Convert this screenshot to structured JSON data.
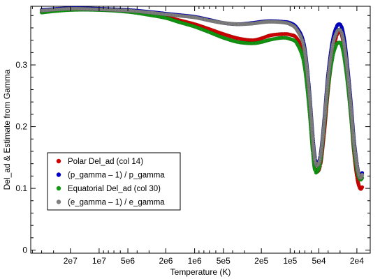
{
  "chart_data": {
    "type": "scatter",
    "xlabel": "Temperature (K)",
    "ylabel": "Del_ad & Estimate from Gamma",
    "x_scale": "log",
    "x_reversed": true,
    "xlim": [
      52000000,
      14500
    ],
    "ylim": [
      -0.005,
      0.395
    ],
    "x_ticks": [
      {
        "value": 20000000,
        "label": "2e7"
      },
      {
        "value": 10000000,
        "label": "1e7"
      },
      {
        "value": 5000000,
        "label": "5e6"
      },
      {
        "value": 2000000,
        "label": "2e6"
      },
      {
        "value": 1000000,
        "label": "1e6"
      },
      {
        "value": 500000,
        "label": "5e5"
      },
      {
        "value": 200000,
        "label": "2e5"
      },
      {
        "value": 100000,
        "label": "1e5"
      },
      {
        "value": 50000,
        "label": "5e4"
      },
      {
        "value": 20000,
        "label": "2e4"
      }
    ],
    "y_ticks": [
      {
        "value": 0,
        "label": "0"
      },
      {
        "value": 0.1,
        "label": "0.1"
      },
      {
        "value": 0.2,
        "label": "0.2"
      },
      {
        "value": 0.3,
        "label": "0.3"
      }
    ],
    "grid": false,
    "legend_position": "lower-left",
    "series": [
      {
        "name": "Polar Del_ad (col 14)",
        "color": "#d40000",
        "x": [
          40000000,
          20000000,
          10000000,
          5000000,
          3000000,
          2000000,
          1500000,
          1000000,
          700000,
          500000,
          350000,
          250000,
          200000,
          160000,
          120000,
          100000,
          85000,
          72000,
          64000,
          58000,
          55000,
          52000,
          48000,
          44000,
          40000,
          36000,
          33000,
          31000,
          29000,
          27000,
          25000,
          23000,
          21500,
          20000,
          19000,
          18200,
          17600
        ],
        "y": [
          0.386,
          0.39,
          0.39,
          0.387,
          0.383,
          0.378,
          0.373,
          0.366,
          0.358,
          0.35,
          0.343,
          0.34,
          0.343,
          0.348,
          0.35,
          0.349,
          0.343,
          0.315,
          0.25,
          0.17,
          0.135,
          0.127,
          0.14,
          0.19,
          0.26,
          0.318,
          0.345,
          0.353,
          0.35,
          0.325,
          0.28,
          0.215,
          0.16,
          0.12,
          0.104,
          0.099,
          0.102
        ]
      },
      {
        "name": "(p_gamma – 1) / p_gamma",
        "color": "#0000cc",
        "x": [
          40000000,
          20000000,
          10000000,
          5000000,
          3000000,
          2000000,
          1500000,
          1000000,
          700000,
          500000,
          350000,
          250000,
          200000,
          160000,
          120000,
          100000,
          85000,
          72000,
          64000,
          58000,
          55000,
          52000,
          48000,
          44000,
          40000,
          36000,
          33000,
          31000,
          29000,
          27000,
          25000,
          23000,
          21500,
          20000,
          19000,
          18200,
          17600
        ],
        "y": [
          0.389,
          0.392,
          0.391,
          0.389,
          0.386,
          0.383,
          0.381,
          0.378,
          0.373,
          0.368,
          0.366,
          0.368,
          0.37,
          0.371,
          0.37,
          0.368,
          0.36,
          0.335,
          0.27,
          0.185,
          0.15,
          0.14,
          0.155,
          0.21,
          0.285,
          0.338,
          0.36,
          0.366,
          0.362,
          0.34,
          0.295,
          0.235,
          0.18,
          0.14,
          0.122,
          0.118,
          0.125
        ]
      },
      {
        "name": "Equatorial Del_ad (col 30)",
        "color": "#119911",
        "x": [
          40000000,
          20000000,
          10000000,
          5000000,
          3000000,
          2000000,
          1500000,
          1000000,
          700000,
          500000,
          350000,
          250000,
          200000,
          160000,
          120000,
          100000,
          85000,
          72000,
          64000,
          58000,
          55000,
          52000,
          48000,
          44000,
          40000,
          36000,
          33000,
          31000,
          29000,
          27000,
          25000,
          23000,
          21500,
          20000,
          19000,
          18200,
          17600
        ],
        "y": [
          0.385,
          0.389,
          0.389,
          0.386,
          0.381,
          0.376,
          0.37,
          0.362,
          0.353,
          0.344,
          0.337,
          0.335,
          0.337,
          0.341,
          0.344,
          0.342,
          0.335,
          0.305,
          0.24,
          0.16,
          0.13,
          0.127,
          0.145,
          0.2,
          0.265,
          0.312,
          0.332,
          0.336,
          0.333,
          0.31,
          0.27,
          0.215,
          0.165,
          0.13,
          0.117,
          0.114,
          0.117
        ]
      },
      {
        "name": "(e_gamma – 1) / e_gamma",
        "color": "#808080",
        "x": [
          40000000,
          20000000,
          10000000,
          5000000,
          3000000,
          2000000,
          1500000,
          1000000,
          700000,
          500000,
          350000,
          250000,
          200000,
          160000,
          120000,
          100000,
          85000,
          72000,
          64000,
          58000,
          55000,
          52000,
          48000,
          44000,
          40000,
          36000,
          33000,
          31000,
          29000,
          27000,
          25000,
          23000,
          21500,
          20000,
          19000,
          18200,
          17600
        ],
        "y": [
          0.388,
          0.391,
          0.39,
          0.388,
          0.385,
          0.382,
          0.38,
          0.377,
          0.372,
          0.368,
          0.366,
          0.367,
          0.369,
          0.37,
          0.369,
          0.366,
          0.357,
          0.33,
          0.265,
          0.18,
          0.146,
          0.137,
          0.152,
          0.205,
          0.278,
          0.33,
          0.351,
          0.357,
          0.353,
          0.33,
          0.287,
          0.228,
          0.175,
          0.138,
          0.121,
          0.117,
          0.122
        ]
      }
    ]
  }
}
